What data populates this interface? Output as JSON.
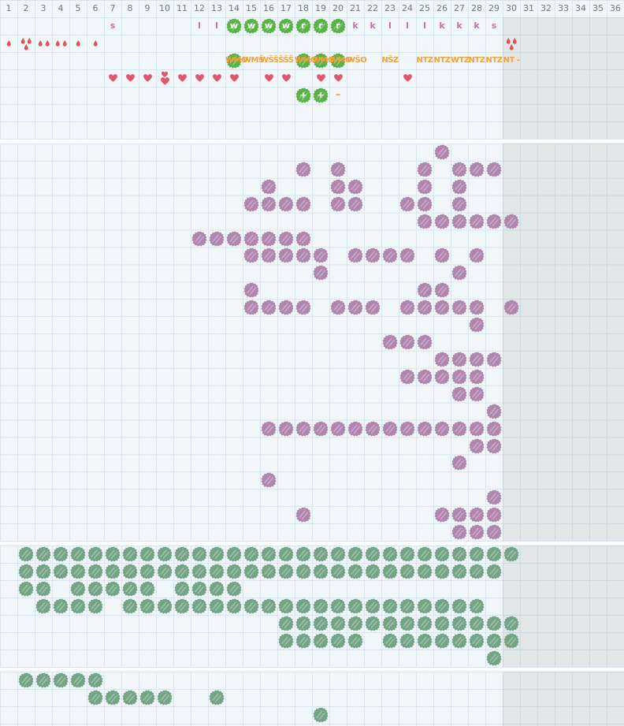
{
  "header": {
    "columns": [
      "1",
      "2",
      "3",
      "4",
      "5",
      "6",
      "7",
      "8",
      "9",
      "10",
      "11",
      "12",
      "13",
      "14",
      "15",
      "16",
      "17",
      "18",
      "19",
      "20",
      "21",
      "22",
      "23",
      "24",
      "25",
      "26",
      "27",
      "28",
      "29",
      "30",
      "31",
      "32",
      "33",
      "34",
      "35",
      "36"
    ]
  },
  "colors": {
    "cell_background": "#f1f6f8",
    "grid_line": "#d9e6ef",
    "offseason_shade": "#e8e9e9",
    "header_text": "#6d7b84",
    "bright_green": "#58b345",
    "sage_green": "#73a486",
    "purple": "#b186ae",
    "drop_red": "#dd5252",
    "heart_pink": "#df5572",
    "orange": "#f2a23c",
    "letter_mauve": "#c06fae"
  },
  "top_section": {
    "letters_row": [
      {
        "col": 7,
        "ch": "s"
      },
      {
        "col": 12,
        "ch": "l"
      },
      {
        "col": 13,
        "ch": "l"
      },
      {
        "col": 14,
        "ch": "w",
        "blob": true
      },
      {
        "col": 15,
        "ch": "w",
        "blob": true
      },
      {
        "col": 16,
        "ch": "w",
        "blob": true
      },
      {
        "col": 17,
        "ch": "w",
        "blob": true
      },
      {
        "col": 18,
        "ch": "r",
        "blob": true
      },
      {
        "col": 19,
        "ch": "r",
        "blob": true
      },
      {
        "col": 20,
        "ch": "r",
        "blob": true
      },
      {
        "col": 21,
        "ch": "k"
      },
      {
        "col": 22,
        "ch": "k"
      },
      {
        "col": 23,
        "ch": "l"
      },
      {
        "col": 24,
        "ch": "l"
      },
      {
        "col": 25,
        "ch": "l"
      },
      {
        "col": 26,
        "ch": "k"
      },
      {
        "col": 27,
        "ch": "k"
      },
      {
        "col": 28,
        "ch": "k"
      },
      {
        "col": 29,
        "ch": "s"
      }
    ],
    "drops_row": [
      {
        "col": 1,
        "count": 1
      },
      {
        "col": 2,
        "count": 3
      },
      {
        "col": 3,
        "count": 2
      },
      {
        "col": 4,
        "count": 2
      },
      {
        "col": 5,
        "count": 1
      },
      {
        "col": 6,
        "count": 1
      },
      {
        "col": 30,
        "count": 3
      }
    ],
    "labels_row": [
      {
        "col": 14,
        "text": "WMO",
        "blob": true
      },
      {
        "col": 15,
        "text": "WMŠ"
      },
      {
        "col": 16,
        "text": "WŠŠ"
      },
      {
        "col": 17,
        "text": "ŠŠŠ"
      },
      {
        "col": 18,
        "text": "WMO",
        "blob": true
      },
      {
        "col": 19,
        "text": "WMO",
        "blob": true
      },
      {
        "col": 20,
        "text": "WMO",
        "blob": true
      },
      {
        "col": 21,
        "text": "WŠO"
      },
      {
        "col": 23,
        "text": "NŠZ"
      },
      {
        "col": 25,
        "text": "NTZ"
      },
      {
        "col": 26,
        "text": "NTZ"
      },
      {
        "col": 27,
        "text": "WTZ"
      },
      {
        "col": 28,
        "text": "NTZ"
      },
      {
        "col": 29,
        "text": "NTZ"
      },
      {
        "col": 30,
        "text": "NT -"
      }
    ],
    "hearts_row": [
      {
        "col": 7
      },
      {
        "col": 8
      },
      {
        "col": 9
      },
      {
        "col": 10,
        "double": true
      },
      {
        "col": 11
      },
      {
        "col": 12
      },
      {
        "col": 13
      },
      {
        "col": 14
      },
      {
        "col": 16
      },
      {
        "col": 17
      },
      {
        "col": 19
      },
      {
        "col": 20
      },
      {
        "col": 24
      }
    ],
    "extras_row": [
      {
        "col": 18,
        "kind": "blob_plus",
        "ch": "+"
      },
      {
        "col": 19,
        "kind": "blob_plus",
        "ch": "+"
      },
      {
        "col": 20,
        "kind": "dash",
        "ch": "–"
      }
    ]
  },
  "purple_section": {
    "rows": [
      {
        "row": 1,
        "cols": [
          26
        ]
      },
      {
        "row": 2,
        "cols": [
          18,
          20,
          25,
          27,
          28,
          29
        ]
      },
      {
        "row": 3,
        "cols": [
          16,
          20,
          21,
          25,
          27
        ]
      },
      {
        "row": 4,
        "cols": [
          15,
          16,
          17,
          18,
          20,
          21,
          24,
          25,
          27
        ]
      },
      {
        "row": 5,
        "cols": [
          25,
          26,
          27,
          28,
          29,
          30
        ]
      },
      {
        "row": 6,
        "cols": [
          12,
          13,
          14,
          15,
          16,
          17,
          18
        ]
      },
      {
        "row": 7,
        "cols": [
          15,
          16,
          17,
          18,
          19,
          21,
          22,
          23,
          24,
          26,
          28
        ]
      },
      {
        "row": 8,
        "cols": [
          19,
          27
        ]
      },
      {
        "row": 9,
        "cols": [
          15,
          25,
          26
        ]
      },
      {
        "row": 10,
        "cols": [
          15,
          16,
          17,
          18,
          20,
          21,
          22,
          24,
          25,
          26,
          27,
          28,
          30
        ]
      },
      {
        "row": 11,
        "cols": [
          28
        ]
      },
      {
        "row": 12,
        "cols": [
          23,
          24,
          25
        ]
      },
      {
        "row": 13,
        "cols": [
          26,
          27,
          28,
          29
        ]
      },
      {
        "row": 14,
        "cols": [
          24,
          25,
          26,
          27,
          28
        ]
      },
      {
        "row": 15,
        "cols": [
          27,
          28
        ]
      },
      {
        "row": 16,
        "cols": [
          29
        ]
      },
      {
        "row": 17,
        "cols": [
          16,
          17,
          18,
          19,
          20,
          21,
          22,
          23,
          24,
          25,
          26,
          27,
          28,
          29
        ]
      },
      {
        "row": 18,
        "cols": [
          28,
          29
        ]
      },
      {
        "row": 19,
        "cols": [
          27
        ]
      },
      {
        "row": 20,
        "cols": [
          16
        ]
      },
      {
        "row": 21,
        "cols": [
          29
        ]
      },
      {
        "row": 22,
        "cols": [
          18,
          26,
          27,
          28,
          29
        ]
      },
      {
        "row": 23,
        "cols": [
          27,
          28,
          29
        ]
      }
    ]
  },
  "green_section": {
    "rows": [
      {
        "row": 1,
        "cols": [
          2,
          3,
          4,
          5,
          6,
          7,
          8,
          9,
          10,
          11,
          12,
          13,
          14,
          15,
          16,
          17,
          18,
          19,
          20,
          21,
          22,
          23,
          24,
          25,
          26,
          27,
          28,
          29,
          30
        ]
      },
      {
        "row": 2,
        "cols": [
          2,
          3,
          4,
          5,
          6,
          7,
          8,
          9,
          10,
          11,
          12,
          13,
          14,
          15,
          16,
          17,
          18,
          19,
          20,
          21,
          22,
          23,
          24,
          25,
          26,
          27,
          28,
          29
        ]
      },
      {
        "row": 3,
        "cols": [
          2,
          3,
          5,
          6,
          7,
          8,
          9,
          11,
          12,
          13,
          14
        ]
      },
      {
        "row": 4,
        "cols": [
          3,
          4,
          5,
          6,
          8,
          9,
          10,
          11,
          12,
          13,
          14,
          15,
          16,
          17,
          18,
          19,
          20,
          21,
          22,
          23,
          24,
          25,
          26,
          27,
          28
        ]
      },
      {
        "row": 5,
        "cols": [
          17,
          18,
          19,
          20,
          21,
          22,
          23,
          24,
          25,
          26,
          27,
          28,
          29,
          30
        ]
      },
      {
        "row": 6,
        "cols": [
          17,
          18,
          19,
          20,
          21,
          23,
          24,
          25,
          26,
          27,
          28,
          29,
          30
        ]
      },
      {
        "row": 7,
        "cols": [
          29
        ]
      }
    ]
  },
  "bottom_section": {
    "rows": [
      {
        "row": 1,
        "cols": [
          2,
          3,
          4,
          5,
          6
        ]
      },
      {
        "row": 2,
        "cols": [
          6,
          7,
          8,
          9,
          10,
          13
        ]
      },
      {
        "row": 3,
        "cols": [
          19
        ]
      }
    ]
  }
}
